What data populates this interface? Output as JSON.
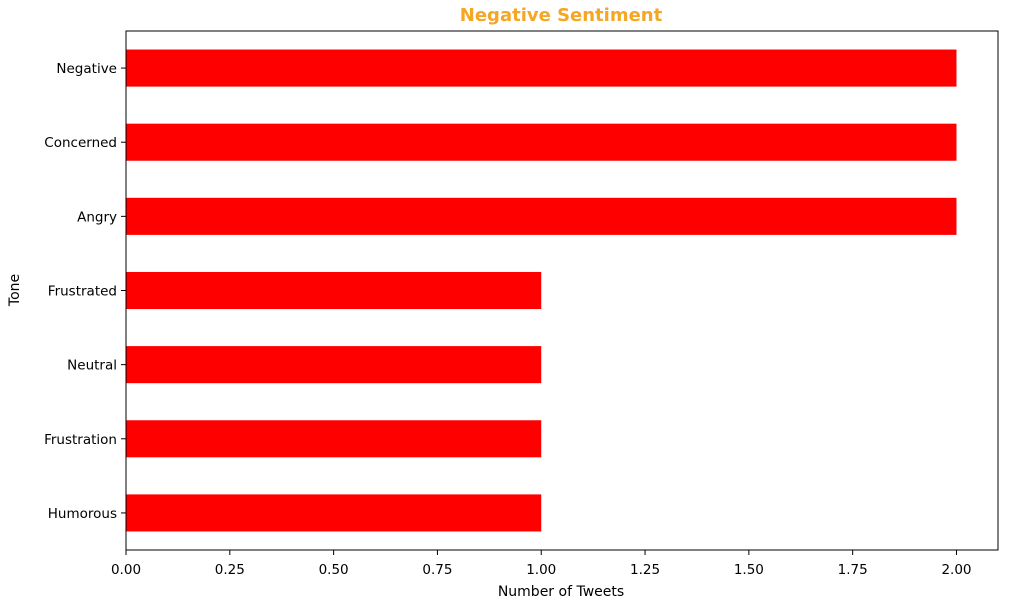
{
  "chart_data": {
    "type": "bar",
    "orientation": "horizontal",
    "title": "Negative Sentiment",
    "title_color": "#f5a623",
    "xlabel": "Number of Tweets",
    "ylabel": "Tone",
    "categories": [
      "Negative",
      "Concerned",
      "Angry",
      "Frustrated",
      "Neutral",
      "Frustration",
      "Humorous"
    ],
    "values": [
      2,
      2,
      2,
      1,
      1,
      1,
      1
    ],
    "bar_color": "#ff0000",
    "xlim": [
      0,
      2.1
    ],
    "xticks": [
      0,
      0.25,
      0.5,
      0.75,
      1.0,
      1.25,
      1.5,
      1.75,
      2.0
    ],
    "xtick_labels": [
      "0.00",
      "0.25",
      "0.50",
      "0.75",
      "1.00",
      "1.25",
      "1.50",
      "1.75",
      "2.00"
    ],
    "grid": false,
    "legend": "none"
  }
}
